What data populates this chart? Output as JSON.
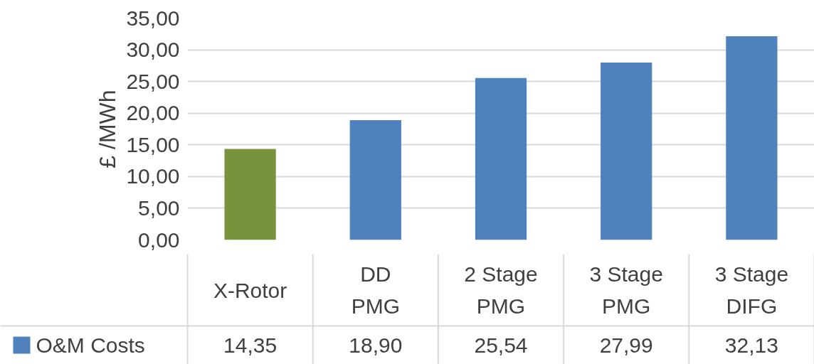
{
  "chart_data": {
    "type": "bar",
    "ylabel": "£ /MWh",
    "categories": [
      "X-Rotor",
      "DD PMG",
      "2 Stage PMG",
      "3 Stage PMG",
      "3 Stage DIFG"
    ],
    "series": [
      {
        "name": "O&M Costs",
        "colors": [
          "#77933c",
          "#4f81bd",
          "#4f81bd",
          "#4f81bd",
          "#4f81bd"
        ],
        "color": "#4f81bd",
        "values": [
          14.35,
          18.9,
          25.54,
          27.99,
          32.13
        ],
        "value_labels": [
          "14,35",
          "18,90",
          "25,54",
          "27,99",
          "32,13"
        ]
      }
    ],
    "ylim": [
      0,
      35
    ],
    "yticks": [
      {
        "value": 0,
        "label": "0,00"
      },
      {
        "value": 5,
        "label": "5,00"
      },
      {
        "value": 10,
        "label": "10,00"
      },
      {
        "value": 15,
        "label": "15,00"
      },
      {
        "value": 20,
        "label": "20,00"
      },
      {
        "value": 25,
        "label": "25,00"
      },
      {
        "value": 30,
        "label": "30,00"
      },
      {
        "value": 35,
        "label": "35,00"
      }
    ],
    "grid": "y",
    "legend": "bottom"
  }
}
